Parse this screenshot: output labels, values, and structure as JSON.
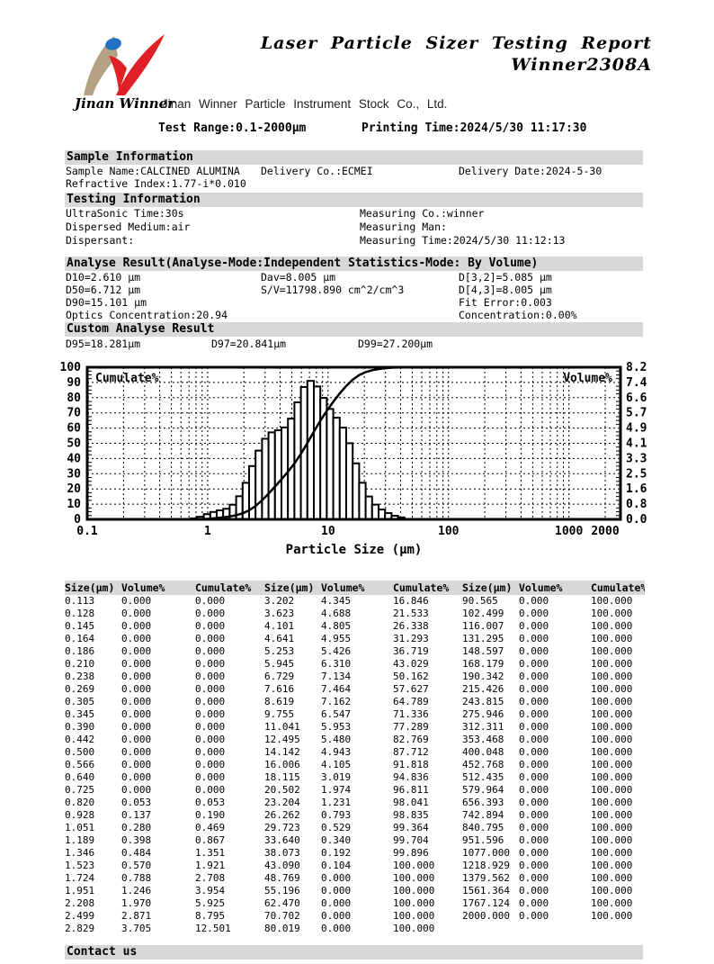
{
  "colors": {
    "section_bar": "#d8d8d8",
    "logo_red": "#e01f26",
    "logo_tan": "#b5a284",
    "logo_blue": "#2272c3",
    "text": "#000000"
  },
  "header": {
    "title_line1": "Laser Particle Sizer Testing Report",
    "title_line2": "Winner2308A",
    "logo_wordmark": "Jinan Winner",
    "company": "Jinan Winner Particle Instrument Stock Co., Ltd.",
    "test_range": "Test Range:0.1-2000µm",
    "printing_time": "Printing Time:2024/5/30 11:17:30"
  },
  "sample_info": {
    "title": "Sample Information",
    "sample_name": "Sample Name:CALCINED ALUMINA",
    "delivery_co": "Delivery Co.:ECMEI",
    "delivery_date": "Delivery Date:2024-5-30",
    "refractive_index": "Refractive Index:1.77-i*0.010"
  },
  "testing_info": {
    "title": "Testing Information",
    "ultrasonic_time": "UltraSonic Time:30s",
    "dispersed_medium": "Dispersed Medium:air",
    "dispersant": "Dispersant:",
    "measuring_co": "Measuring Co.:winner",
    "measuring_man": "Measuring Man:",
    "measuring_time": "Measuring Time:2024/5/30 11:12:13"
  },
  "analyse_result": {
    "title": "Analyse Result(Analyse-Mode:Independent  Statistics-Mode: By Volume)",
    "d10": "D10=2.610 µm",
    "dav": "Dav=8.005 µm",
    "d32": "D[3,2]=5.085 µm",
    "d50": "D50=6.712 µm",
    "sv": "S/V=11798.890 cm^2/cm^3",
    "d43": "D[4,3]=8.005 µm",
    "d90": "D90=15.101 µm",
    "fit_error": "Fit Error:0.003",
    "optics_concentration": "Optics Concentration:20.94",
    "concentration": "Concentration:0.00%"
  },
  "custom_analyse": {
    "title": "Custom Analyse Result",
    "d95": "D95=18.281µm",
    "d97": "D97=20.841µm",
    "d99": "D99=27.200µm"
  },
  "chart_data": {
    "type": "bar",
    "subtype": "log-histogram with cumulative line",
    "x_axis": {
      "label": "Particle Size (µm)",
      "scale": "log",
      "min": 0.1,
      "max": 2000,
      "ticks": [
        0.1,
        1,
        10,
        100,
        1000,
        2000
      ],
      "tick_labels": [
        "0.1",
        "1",
        "10",
        "100",
        "1000",
        "2000"
      ]
    },
    "left_axis": {
      "label": "Cumulate%",
      "min": 0,
      "max": 100,
      "tick_step": 10
    },
    "right_axis": {
      "label": "Volume%",
      "min": 0,
      "max": 8.2,
      "tick_labels_top_to_bottom": [
        "8.2",
        "7.4",
        "6.6",
        "5.7",
        "4.9",
        "4.1",
        "3.3",
        "2.5",
        "1.6",
        "0.8",
        "0.0"
      ]
    },
    "grid": "dashed",
    "sizes": [
      0.113,
      0.128,
      0.145,
      0.164,
      0.186,
      0.21,
      0.238,
      0.269,
      0.305,
      0.345,
      0.39,
      0.442,
      0.5,
      0.566,
      0.64,
      0.725,
      0.82,
      0.928,
      1.051,
      1.189,
      1.346,
      1.523,
      1.724,
      1.951,
      2.208,
      2.499,
      2.829,
      3.202,
      3.623,
      4.101,
      4.641,
      5.253,
      5.945,
      6.729,
      7.616,
      8.619,
      9.755,
      11.041,
      12.495,
      14.142,
      16.006,
      18.115,
      20.502,
      23.204,
      26.262,
      29.723,
      33.64,
      38.073,
      43.09,
      48.769,
      55.196,
      62.47,
      70.702,
      80.019,
      90.565,
      102.499,
      116.007,
      131.295,
      148.597,
      168.179,
      190.342,
      215.426,
      243.815,
      275.946,
      312.311,
      353.468,
      400.048,
      452.768,
      512.435,
      579.964,
      656.393,
      742.894,
      840.795,
      951.596,
      1077.0,
      1218.929,
      1379.562,
      1561.364,
      1767.124,
      2000.0
    ],
    "volume": [
      0,
      0,
      0,
      0,
      0,
      0,
      0,
      0,
      0,
      0,
      0,
      0,
      0,
      0,
      0,
      0,
      0.053,
      0.137,
      0.28,
      0.398,
      0.484,
      0.57,
      0.788,
      1.246,
      1.97,
      2.871,
      3.705,
      4.345,
      4.688,
      4.805,
      4.955,
      5.426,
      6.31,
      7.134,
      7.464,
      7.162,
      6.547,
      5.953,
      5.48,
      4.943,
      4.105,
      3.019,
      1.974,
      1.231,
      0.793,
      0.529,
      0.34,
      0.192,
      0.104,
      0,
      0,
      0,
      0,
      0,
      0,
      0,
      0,
      0,
      0,
      0,
      0,
      0,
      0,
      0,
      0,
      0,
      0,
      0,
      0,
      0,
      0,
      0,
      0,
      0,
      0,
      0,
      0,
      0,
      0,
      0
    ],
    "cumulate": [
      0,
      0,
      0,
      0,
      0,
      0,
      0,
      0,
      0,
      0,
      0,
      0,
      0,
      0,
      0,
      0,
      0.053,
      0.19,
      0.469,
      0.867,
      1.351,
      1.921,
      2.708,
      3.954,
      5.925,
      8.795,
      12.501,
      16.846,
      21.533,
      26.338,
      31.293,
      36.719,
      43.029,
      50.162,
      57.627,
      64.789,
      71.336,
      77.289,
      82.769,
      87.712,
      91.818,
      94.836,
      96.811,
      98.041,
      98.835,
      99.364,
      99.704,
      99.896,
      100,
      100,
      100,
      100,
      100,
      100,
      100,
      100,
      100,
      100,
      100,
      100,
      100,
      100,
      100,
      100,
      100,
      100,
      100,
      100,
      100,
      100,
      100,
      100,
      100,
      100,
      100,
      100,
      100,
      100,
      100,
      100
    ]
  },
  "table": {
    "headers": [
      "Size(µm)",
      "Volume%",
      "Cumulate%",
      "Size(µm)",
      "Volume%",
      "Cumulate%",
      "Size(µm)",
      "Volume%",
      "Cumulate%"
    ],
    "rows": [
      [
        "0.113",
        "0.000",
        "0.000",
        "3.202",
        "4.345",
        "16.846",
        "90.565",
        "0.000",
        "100.000"
      ],
      [
        "0.128",
        "0.000",
        "0.000",
        "3.623",
        "4.688",
        "21.533",
        "102.499",
        "0.000",
        "100.000"
      ],
      [
        "0.145",
        "0.000",
        "0.000",
        "4.101",
        "4.805",
        "26.338",
        "116.007",
        "0.000",
        "100.000"
      ],
      [
        "0.164",
        "0.000",
        "0.000",
        "4.641",
        "4.955",
        "31.293",
        "131.295",
        "0.000",
        "100.000"
      ],
      [
        "0.186",
        "0.000",
        "0.000",
        "5.253",
        "5.426",
        "36.719",
        "148.597",
        "0.000",
        "100.000"
      ],
      [
        "0.210",
        "0.000",
        "0.000",
        "5.945",
        "6.310",
        "43.029",
        "168.179",
        "0.000",
        "100.000"
      ],
      [
        "0.238",
        "0.000",
        "0.000",
        "6.729",
        "7.134",
        "50.162",
        "190.342",
        "0.000",
        "100.000"
      ],
      [
        "0.269",
        "0.000",
        "0.000",
        "7.616",
        "7.464",
        "57.627",
        "215.426",
        "0.000",
        "100.000"
      ],
      [
        "0.305",
        "0.000",
        "0.000",
        "8.619",
        "7.162",
        "64.789",
        "243.815",
        "0.000",
        "100.000"
      ],
      [
        "0.345",
        "0.000",
        "0.000",
        "9.755",
        "6.547",
        "71.336",
        "275.946",
        "0.000",
        "100.000"
      ],
      [
        "0.390",
        "0.000",
        "0.000",
        "11.041",
        "5.953",
        "77.289",
        "312.311",
        "0.000",
        "100.000"
      ],
      [
        "0.442",
        "0.000",
        "0.000",
        "12.495",
        "5.480",
        "82.769",
        "353.468",
        "0.000",
        "100.000"
      ],
      [
        "0.500",
        "0.000",
        "0.000",
        "14.142",
        "4.943",
        "87.712",
        "400.048",
        "0.000",
        "100.000"
      ],
      [
        "0.566",
        "0.000",
        "0.000",
        "16.006",
        "4.105",
        "91.818",
        "452.768",
        "0.000",
        "100.000"
      ],
      [
        "0.640",
        "0.000",
        "0.000",
        "18.115",
        "3.019",
        "94.836",
        "512.435",
        "0.000",
        "100.000"
      ],
      [
        "0.725",
        "0.000",
        "0.000",
        "20.502",
        "1.974",
        "96.811",
        "579.964",
        "0.000",
        "100.000"
      ],
      [
        "0.820",
        "0.053",
        "0.053",
        "23.204",
        "1.231",
        "98.041",
        "656.393",
        "0.000",
        "100.000"
      ],
      [
        "0.928",
        "0.137",
        "0.190",
        "26.262",
        "0.793",
        "98.835",
        "742.894",
        "0.000",
        "100.000"
      ],
      [
        "1.051",
        "0.280",
        "0.469",
        "29.723",
        "0.529",
        "99.364",
        "840.795",
        "0.000",
        "100.000"
      ],
      [
        "1.189",
        "0.398",
        "0.867",
        "33.640",
        "0.340",
        "99.704",
        "951.596",
        "0.000",
        "100.000"
      ],
      [
        "1.346",
        "0.484",
        "1.351",
        "38.073",
        "0.192",
        "99.896",
        "1077.000",
        "0.000",
        "100.000"
      ],
      [
        "1.523",
        "0.570",
        "1.921",
        "43.090",
        "0.104",
        "100.000",
        "1218.929",
        "0.000",
        "100.000"
      ],
      [
        "1.724",
        "0.788",
        "2.708",
        "48.769",
        "0.000",
        "100.000",
        "1379.562",
        "0.000",
        "100.000"
      ],
      [
        "1.951",
        "1.246",
        "3.954",
        "55.196",
        "0.000",
        "100.000",
        "1561.364",
        "0.000",
        "100.000"
      ],
      [
        "2.208",
        "1.970",
        "5.925",
        "62.470",
        "0.000",
        "100.000",
        "1767.124",
        "0.000",
        "100.000"
      ],
      [
        "2.499",
        "2.871",
        "8.795",
        "70.702",
        "0.000",
        "100.000",
        "2000.000",
        "0.000",
        "100.000"
      ],
      [
        "2.829",
        "3.705",
        "12.501",
        "80.019",
        "0.000",
        "100.000",
        "",
        "",
        ""
      ]
    ]
  },
  "footer": {
    "contact": "Contact us"
  }
}
